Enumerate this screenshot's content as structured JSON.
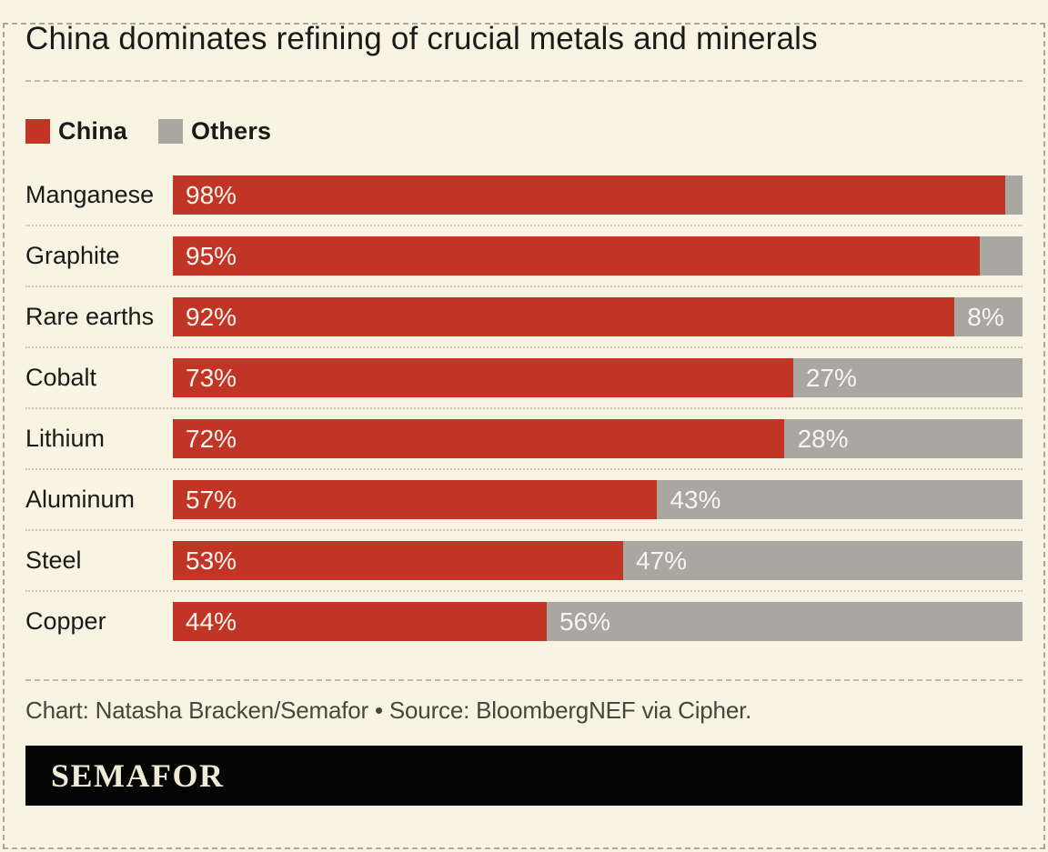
{
  "title": "China dominates refining of crucial metals and minerals",
  "legend": [
    {
      "label": "China",
      "color": "#c03526",
      "swatch": "red-square"
    },
    {
      "label": "Others",
      "color": "#a9a7a2",
      "swatch": "gray-square"
    }
  ],
  "chart_data": {
    "type": "bar",
    "orientation": "horizontal",
    "stacked": true,
    "title": "China dominates refining of crucial metals and minerals",
    "categories": [
      "Manganese",
      "Graphite",
      "Rare earths",
      "Cobalt",
      "Lithium",
      "Aluminum",
      "Steel",
      "Copper"
    ],
    "series": [
      {
        "name": "China",
        "color": "#c03526",
        "values": [
          98,
          95,
          92,
          73,
          72,
          57,
          53,
          44
        ]
      },
      {
        "name": "Others",
        "color": "#a9a7a2",
        "values": [
          2,
          5,
          8,
          27,
          28,
          43,
          47,
          56
        ]
      }
    ],
    "bar_labels": [
      {
        "china": "98%",
        "others": ""
      },
      {
        "china": "95%",
        "others": ""
      },
      {
        "china": "92%",
        "others": "8%"
      },
      {
        "china": "73%",
        "others": "27%"
      },
      {
        "china": "72%",
        "others": "28%"
      },
      {
        "china": "57%",
        "others": "43%"
      },
      {
        "china": "53%",
        "others": "47%"
      },
      {
        "china": "44%",
        "others": "56%"
      }
    ],
    "value_suffix": "%",
    "xlim": [
      0,
      100
    ],
    "grid": false,
    "legend_position": "top"
  },
  "footer": {
    "credit": "Chart: Natasha Bracken/Semafor • Source: BloombergNEF via Cipher.",
    "logo": "SEMAFOR"
  },
  "colors": {
    "background": "#f8f4e3",
    "china_red": "#c03526",
    "others_gray": "#a9a7a2",
    "text": "#1a1a18",
    "credit_text": "#45463e",
    "dashed_line": "#aaa89e",
    "dotted_separator": "#cbc8bc",
    "bar_label_text": "#f8f5ec",
    "logo_bar": "#050505",
    "logo_text": "#f0ebd5"
  }
}
